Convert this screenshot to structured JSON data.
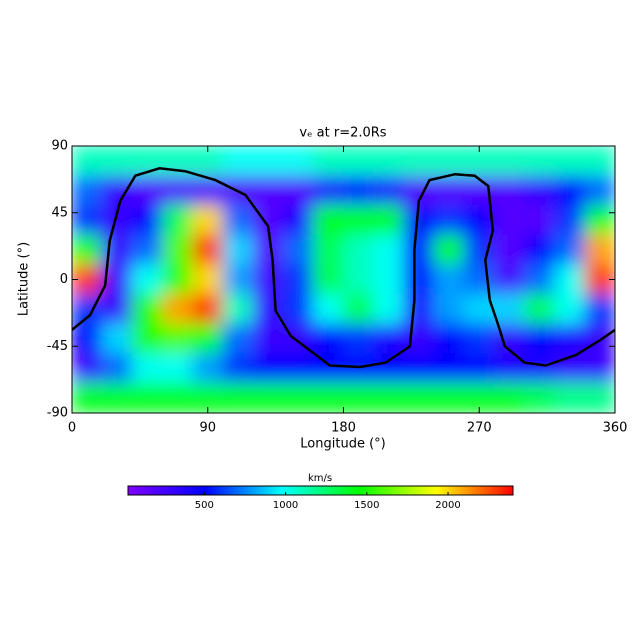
{
  "chart_data": {
    "type": "heatmap",
    "title": "vₑ at r=2.0Rs",
    "x_label": "Longitude (°)",
    "y_label": "Latitude (°)",
    "xlim": [
      0,
      360
    ],
    "xticks": [
      0,
      90,
      180,
      270,
      360
    ],
    "ylim": [
      -90,
      90
    ],
    "yticks": [
      -90,
      -45,
      0,
      45,
      90
    ],
    "x": [
      10,
      30,
      50,
      70,
      90,
      110,
      130,
      150,
      170,
      190,
      210,
      230,
      250,
      270,
      290,
      310,
      330,
      350
    ],
    "y": [
      80,
      60,
      40,
      20,
      0,
      -20,
      -40,
      -60,
      -80
    ],
    "z": [
      [
        1100,
        1100,
        1100,
        1100,
        1100,
        1000,
        1000,
        1000,
        1100,
        1100,
        1100,
        1100,
        1100,
        1100,
        1100,
        1100,
        1100,
        1100
      ],
      [
        700,
        300,
        200,
        200,
        200,
        200,
        200,
        200,
        400,
        500,
        400,
        200,
        200,
        200,
        200,
        300,
        500,
        700
      ],
      [
        600,
        300,
        500,
        1300,
        2000,
        700,
        200,
        400,
        1400,
        1400,
        1400,
        500,
        600,
        500,
        200,
        200,
        600,
        1400
      ],
      [
        1500,
        300,
        700,
        1600,
        2300,
        900,
        200,
        700,
        1300,
        1100,
        1000,
        500,
        1400,
        600,
        200,
        500,
        700,
        2100
      ],
      [
        2300,
        300,
        1000,
        1500,
        2000,
        800,
        250,
        600,
        1300,
        1100,
        1000,
        500,
        800,
        700,
        250,
        700,
        1000,
        2300
      ],
      [
        600,
        300,
        1500,
        2100,
        2300,
        1100,
        300,
        600,
        1000,
        1300,
        1000,
        400,
        800,
        900,
        900,
        1300,
        1000,
        600
      ],
      [
        500,
        900,
        1500,
        1600,
        1400,
        700,
        300,
        300,
        500,
        600,
        400,
        300,
        500,
        600,
        300,
        500,
        400,
        300
      ],
      [
        300,
        700,
        1000,
        1000,
        800,
        600,
        500,
        500,
        500,
        500,
        500,
        500,
        500,
        500,
        400,
        400,
        300,
        300
      ],
      [
        1400,
        1400,
        1400,
        1400,
        1400,
        1400,
        1400,
        1400,
        1400,
        1400,
        1400,
        1400,
        1400,
        1400,
        1400,
        1300,
        1200,
        1200
      ]
    ],
    "colormap": [
      "#8000ff",
      "#0000ff",
      "#00ffff",
      "#00ff00",
      "#ffff00",
      "#ff0000"
    ],
    "clim": [
      30,
      2400
    ],
    "colorbar_label": "km/s",
    "cticks": [
      500,
      1000,
      1500,
      2000
    ],
    "contour": {
      "color": "#000000",
      "lon": [
        0,
        12,
        22,
        25,
        32,
        42,
        58,
        75,
        95,
        115,
        130,
        133,
        135,
        145,
        171,
        191,
        208,
        224,
        227,
        227,
        230,
        237,
        254,
        267,
        276,
        279,
        274,
        277,
        282,
        287,
        300,
        314,
        334,
        350,
        360
      ],
      "lat": [
        -34,
        -24,
        -4,
        26,
        53,
        70,
        75,
        73,
        67,
        57,
        36,
        13,
        -21,
        -38,
        -58,
        -59,
        -56,
        -45,
        -14,
        20,
        53,
        67,
        71,
        70,
        63,
        33,
        13,
        -14,
        -29,
        -45,
        -56,
        -58,
        -51,
        -41,
        -34
      ]
    }
  }
}
